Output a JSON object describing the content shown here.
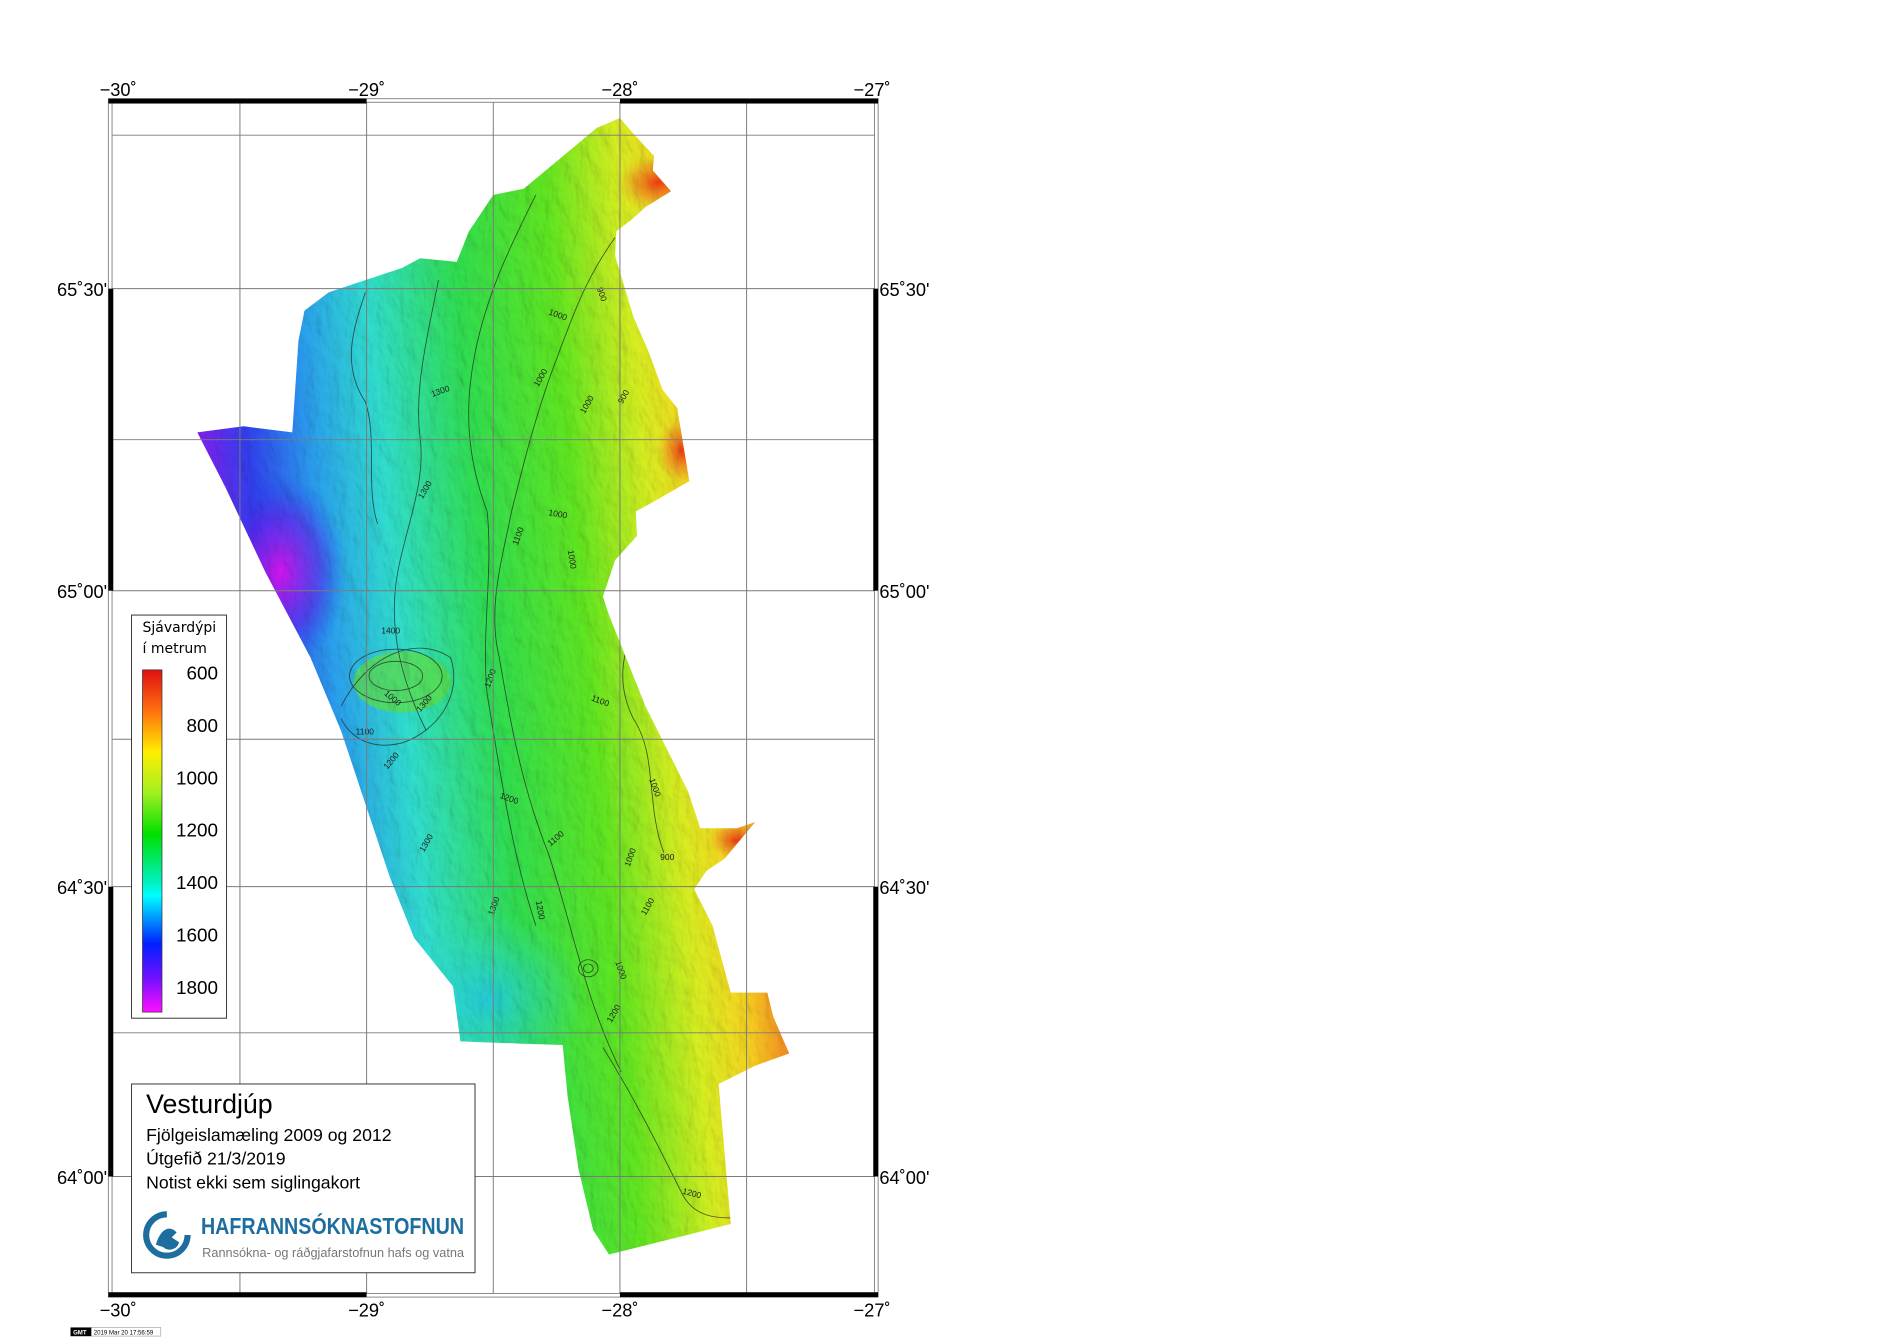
{
  "map": {
    "top_axis_labels": [
      "−30˚",
      "−29˚",
      "−28˚",
      "−27˚"
    ],
    "bottom_axis_labels": [
      "−30˚",
      "−29˚",
      "−28˚",
      "−27˚"
    ],
    "left_axis_labels": [
      "65˚30'",
      "65˚00'",
      "64˚30'",
      "64˚00'"
    ],
    "right_axis_labels": [
      "65˚30'",
      "65˚00'",
      "64˚30'",
      "64˚00'"
    ],
    "contour_labels": [
      "900",
      "1000",
      "1300",
      "1000",
      "1000",
      "900",
      "1300",
      "1000",
      "1000",
      "1100",
      "1400",
      "1000",
      "1300",
      "1200",
      "1100",
      "1100",
      "1200",
      "1200",
      "1300",
      "1100",
      "900",
      "1000",
      "1000",
      "1300",
      "1200",
      "1000",
      "1100",
      "1200",
      "1200"
    ],
    "colors": {
      "shallow": "#ff2000",
      "mid": "#20e020",
      "deep": "#ff00ff"
    }
  },
  "legend": {
    "title_line1": "Sjávardýpi",
    "title_line2": "í metrum",
    "ticks": [
      "600",
      "800",
      "1000",
      "1200",
      "1400",
      "1600",
      "1800"
    ]
  },
  "info_box": {
    "title": "Vesturdjúp",
    "line1": "Fjölgeislamæling  2009 og 2012",
    "line2": "Útgefið  21/3/2019",
    "line3": "Notist ekki sem siglingakort",
    "logo_name": "HAFRANNSÓKNASTOFNUN",
    "logo_subtitle": "Rannsókna- og ráðgjafarstofnun hafs og vatna",
    "logo_color": "#1d6e9e"
  },
  "timestamp": {
    "badge": "GMT",
    "text": "2019 Mar 20 17:56:59"
  }
}
